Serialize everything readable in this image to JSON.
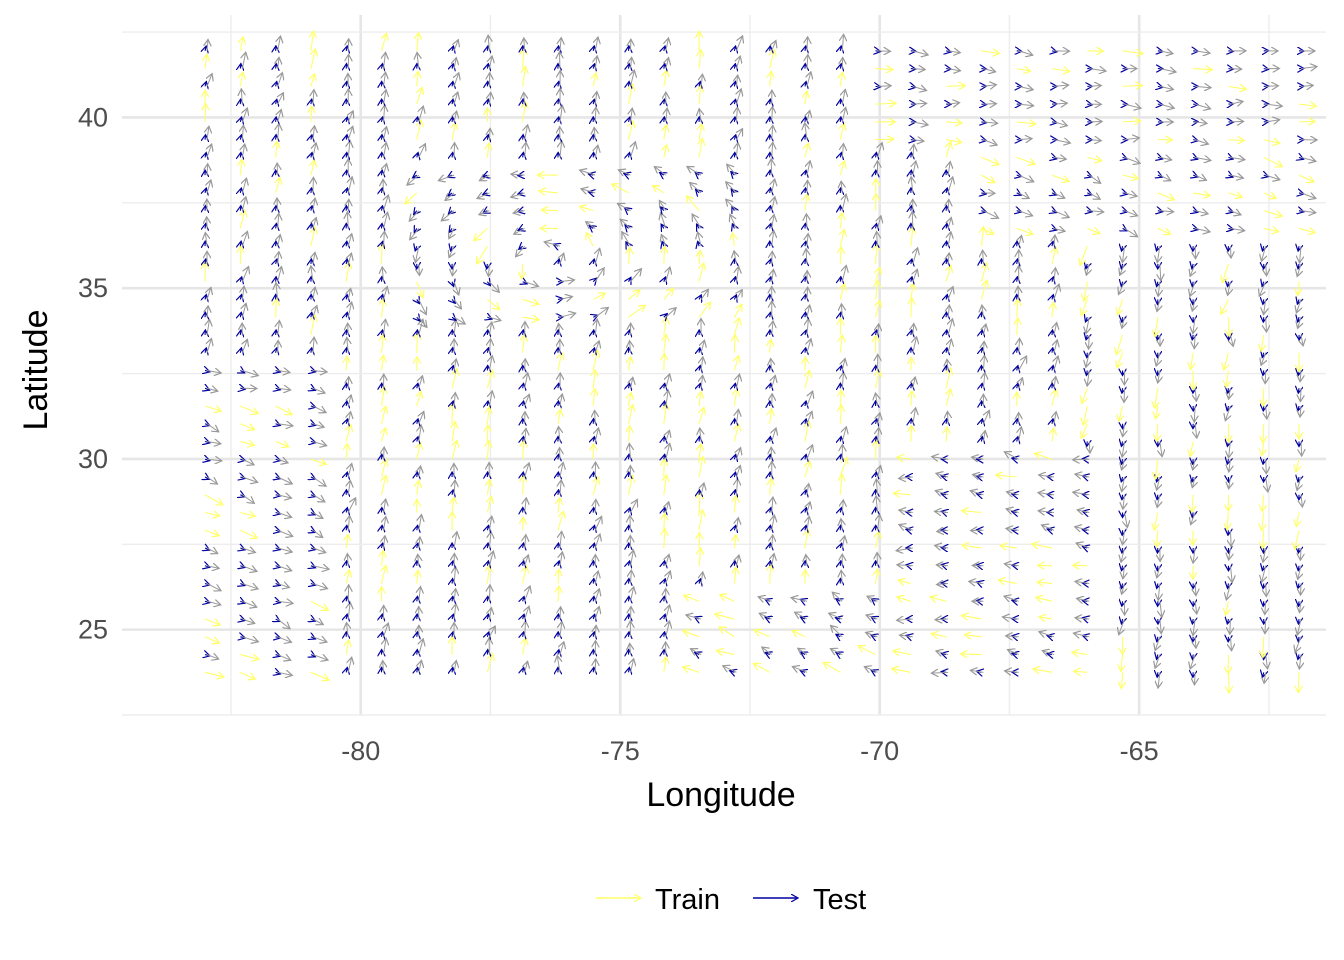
{
  "chart_data": {
    "type": "quiver",
    "title": "",
    "xlabel": "Longitude",
    "ylabel": "Latitude",
    "xlim": [
      -84.6,
      -61.4
    ],
    "ylim": [
      22.5,
      43.0
    ],
    "x_ticks": [
      -80,
      -75,
      -70,
      -65
    ],
    "x_tick_labels": [
      "-80",
      "-75",
      "-70",
      "-65"
    ],
    "y_ticks": [
      25,
      30,
      35,
      40
    ],
    "y_tick_labels": [
      "25",
      "30",
      "35",
      "40"
    ],
    "grid": true,
    "legend_position": "bottom",
    "grid_spec": {
      "lon_start": -83.0,
      "lon_step": 0.68,
      "lon_count": 32,
      "lat_start": 23.75,
      "lat_step": 0.52,
      "lat_count": 36
    },
    "series": [
      {
        "name": "Train",
        "color": "#ffff66"
      },
      {
        "name": "Test",
        "color": "#0000a0"
      }
    ],
    "reference_color": "#999999",
    "vector_field": "approx. flow field read from the figure; per-point arrows drawn from the grid spec"
  },
  "legend": {
    "items": [
      {
        "label": "Train",
        "color": "#ffff66"
      },
      {
        "label": "Test",
        "color": "#0000a0"
      }
    ]
  }
}
